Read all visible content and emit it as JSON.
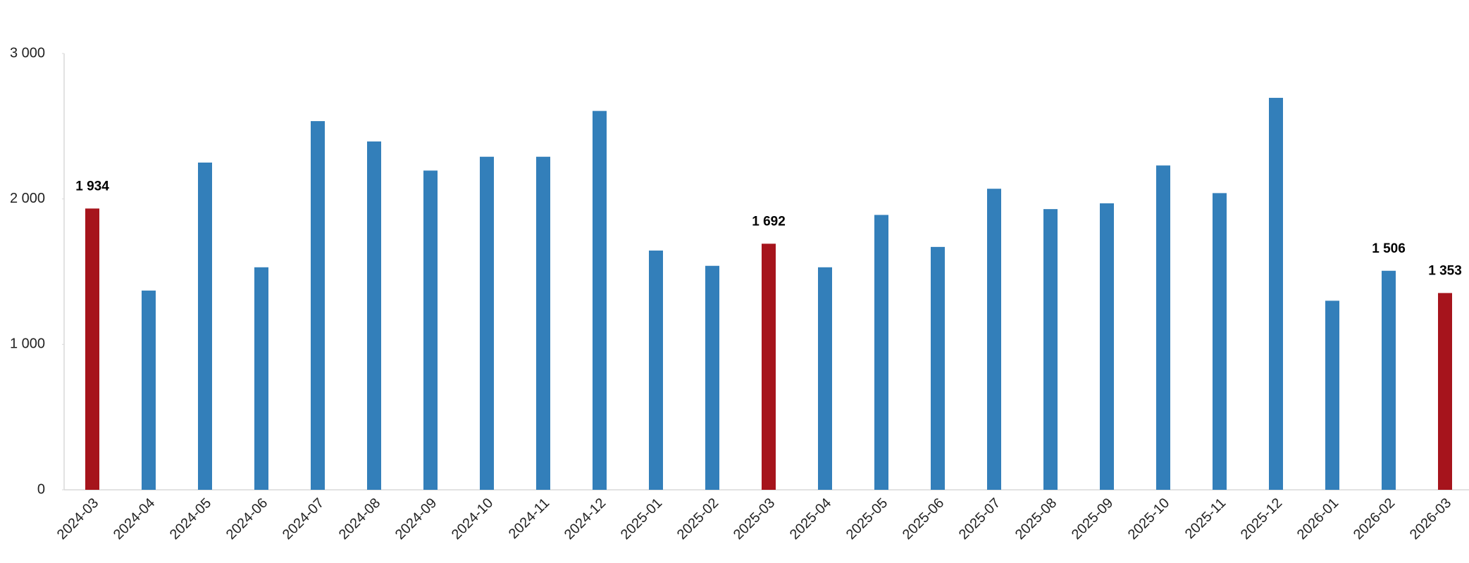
{
  "chart_data": {
    "type": "bar",
    "categories": [
      "2024-03",
      "2024-04",
      "2024-05",
      "2024-06",
      "2024-07",
      "2024-08",
      "2024-09",
      "2024-10",
      "2024-11",
      "2024-12",
      "2025-01",
      "2025-02",
      "2025-03",
      "2025-04",
      "2025-05",
      "2025-06",
      "2025-07",
      "2025-08",
      "2025-09",
      "2025-10",
      "2025-11",
      "2025-12",
      "2026-01",
      "2026-02",
      "2026-03"
    ],
    "values": [
      1934,
      1370,
      2250,
      1530,
      2535,
      2395,
      2195,
      2290,
      2290,
      2605,
      1645,
      1540,
      1692,
      1530,
      1890,
      1670,
      2070,
      1930,
      1970,
      2230,
      2040,
      2695,
      1300,
      1506,
      1353
    ],
    "value_labels": [
      "1 934",
      null,
      null,
      null,
      null,
      null,
      null,
      null,
      null,
      null,
      null,
      null,
      "1 692",
      null,
      null,
      null,
      null,
      null,
      null,
      null,
      null,
      null,
      null,
      "1 506",
      "1 353"
    ],
    "colors": [
      "#a6141c",
      "#337fba",
      "#337fba",
      "#337fba",
      "#337fba",
      "#337fba",
      "#337fba",
      "#337fba",
      "#337fba",
      "#337fba",
      "#337fba",
      "#337fba",
      "#a6141c",
      "#337fba",
      "#337fba",
      "#337fba",
      "#337fba",
      "#337fba",
      "#337fba",
      "#337fba",
      "#337fba",
      "#337fba",
      "#337fba",
      "#337fba",
      "#a6141c"
    ],
    "ylim": [
      0,
      3000
    ],
    "yticks": [
      0,
      {
        "value": 1000,
        "label": "1 000"
      },
      {
        "value": 2000,
        "label": "2 000"
      },
      {
        "value": 3000,
        "label": "3 000"
      }
    ],
    "grid": false
  }
}
